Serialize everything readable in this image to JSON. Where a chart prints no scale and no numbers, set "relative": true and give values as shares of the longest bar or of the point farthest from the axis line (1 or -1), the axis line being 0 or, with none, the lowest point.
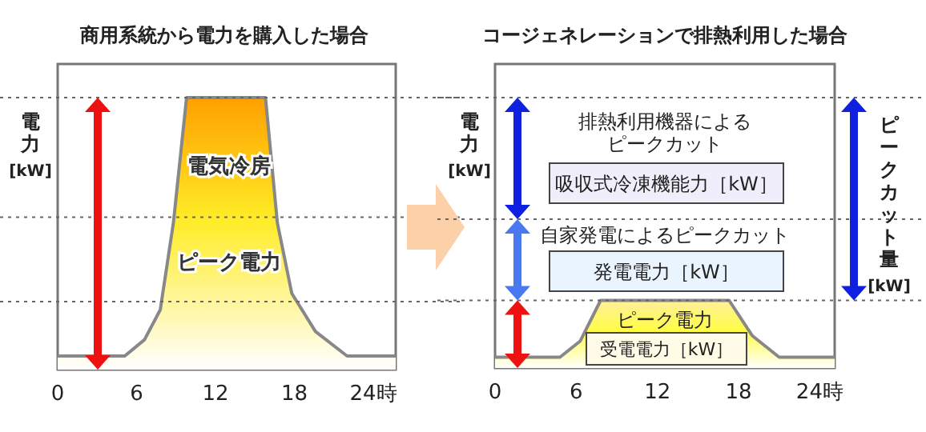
{
  "chart_data": [
    {
      "type": "area",
      "title": "商用系統から電力を購入した場合",
      "ylabel": "電力[kW]",
      "relative": true,
      "xlim": [
        0,
        25.7
      ],
      "xticks": [
        0,
        6,
        12,
        18,
        {
          "value": 24,
          "label": "24時"
        }
      ],
      "x": [
        0,
        5.1,
        6.6,
        7.8,
        8.8,
        9.8,
        15.8,
        16.7,
        17.8,
        19.6,
        22.0,
        25.7
      ],
      "series": [
        {
          "color": "#ffa000",
          "values": [
            0.05,
            0.05,
            0.11,
            0.22,
            0.54,
            1,
            1,
            0.54,
            0.28,
            0.14,
            0.05,
            0.05
          ]
        }
      ],
      "annotations": [
        "電気冷房",
        "ピーク電力"
      ],
      "ref_lines": [
        {
          "axis": "y",
          "value": 0.25,
          "line_style": "dotted",
          "color": "#666666"
        },
        {
          "axis": "y",
          "value": 0.56,
          "line_style": "dotted",
          "color": "#666666"
        },
        {
          "axis": "y",
          "value": 1,
          "line_style": "dotted",
          "color": "#666666"
        }
      ]
    },
    {
      "type": "area",
      "title": "コージェネレーションで排熱利用した場合",
      "ylabel": "電力[kW]",
      "relative": true,
      "xlim": [
        0,
        25.1
      ],
      "xticks": [
        0,
        6,
        12,
        18,
        {
          "value": 24,
          "label": "24時"
        }
      ],
      "x": [
        0,
        4.8,
        6.3,
        7.8,
        17.3,
        19.0,
        21.0,
        25.1
      ],
      "series": [
        {
          "color": "#fff09a",
          "values": [
            0.16,
            0.16,
            0.4,
            1,
            1,
            0.48,
            0.16,
            0.16
          ]
        }
      ],
      "annotations": [
        "排熱利用機器による",
        "ピークカット",
        "吸収式冷凍機能力［kW］",
        "自家発電によるピークカット",
        "発電電力［kW］",
        "ピーク電力",
        "受電電力［kW］",
        "ピークカット量[kW]"
      ],
      "ref_lines": [
        {
          "axis": "y",
          "value": 1,
          "line_style": "dotted",
          "color": "#666666"
        },
        {
          "axis": "y",
          "value": 2.2,
          "line_style": "dotted",
          "color": "#666666"
        },
        {
          "axis": "y",
          "value": 4,
          "line_style": "dotted",
          "color": "#666666"
        }
      ]
    }
  ]
}
